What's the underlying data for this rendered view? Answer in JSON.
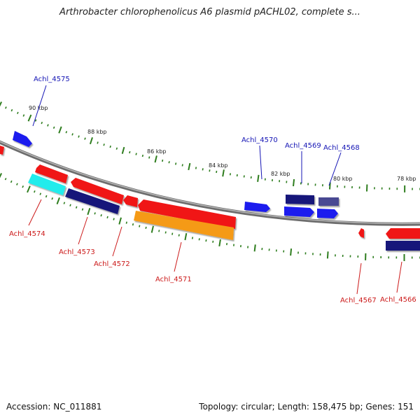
{
  "title": "Arthrobacter chlorophenolicus A6 plasmid pACHL02, complete s...",
  "footer": {
    "accession": "Accession: NC_011881",
    "summary": "Topology: circular; Length: 158,475 bp; Genes: 151"
  },
  "colors": {
    "backbone": "#8a8a8a",
    "tick": "#2e7d1e",
    "forward_label": "#1515b5",
    "reverse_label": "#cc1a1a",
    "red": "#f01515",
    "blue": "#1a1aee",
    "navy": "#12127a",
    "cyan": "#22ecec",
    "orange": "#f59a14",
    "slate": "#4a4a92"
  },
  "scale_labels": [
    "90 kbp",
    "88 kbp",
    "86 kbp",
    "84 kbp",
    "82 kbp",
    "80 kbp",
    "78 kbp"
  ],
  "forward_labels": [
    "Achl_4575",
    "Achl_4570",
    "Achl_4569",
    "Achl_4568"
  ],
  "reverse_labels": [
    "Achl_4574",
    "Achl_4573",
    "Achl_4572",
    "Achl_4571",
    "Achl_4567",
    "Achl_4566"
  ]
}
